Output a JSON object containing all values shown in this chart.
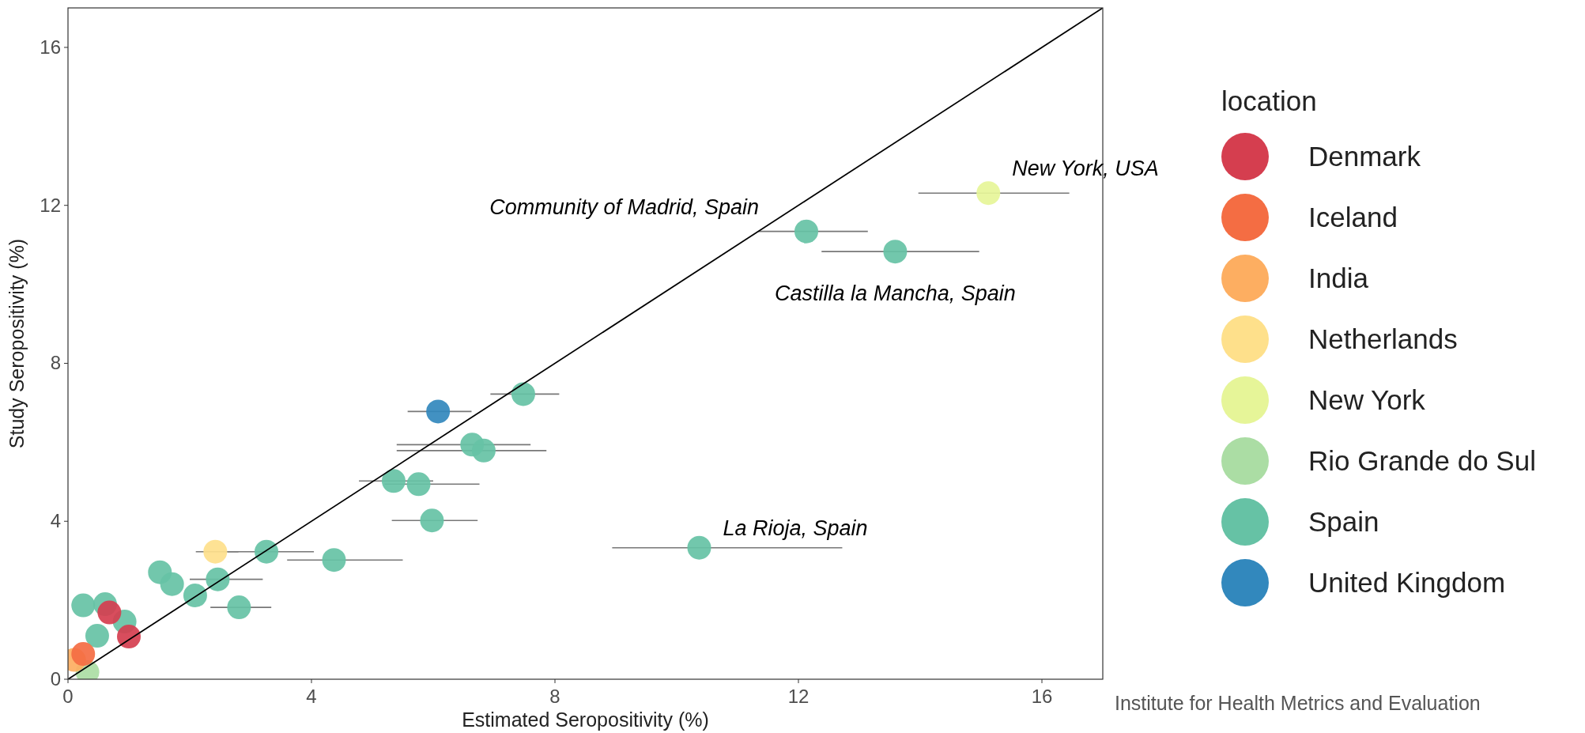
{
  "chart_data": {
    "type": "scatter",
    "xlabel": "Estimated Seropositivity (%)",
    "ylabel": "Study Seropositivity (%)",
    "legend_title": "location",
    "legend": "right",
    "grid": false,
    "marker": "circle",
    "xlim": [
      0,
      17
    ],
    "ylim": [
      0,
      17
    ],
    "xticks": [
      0,
      4,
      8,
      12,
      16
    ],
    "yticks": [
      0,
      4,
      8,
      12,
      16
    ],
    "series": [
      {
        "type": "line",
        "marker": "none",
        "color": "#000000",
        "x": [
          0,
          17
        ],
        "values": [
          0,
          17
        ]
      },
      {
        "name": "Denmark",
        "color": "#d53e4f",
        "x": [
          0.68,
          1.0
        ],
        "values": [
          1.69,
          1.08
        ],
        "xerrors": [
          null,
          null
        ]
      },
      {
        "name": "Iceland",
        "color": "#f46d43",
        "x": [
          0.25
        ],
        "values": [
          0.64
        ],
        "xerrors": [
          null
        ]
      },
      {
        "name": "India",
        "color": "#fdae61",
        "x": [
          0.1
        ],
        "values": [
          0.49
        ],
        "xerrors": [
          null
        ]
      },
      {
        "name": "Netherlands",
        "color": "#fee08b",
        "x": [
          2.42
        ],
        "values": [
          3.23
        ],
        "xerrors": [
          [
            2.1,
            2.8
          ]
        ]
      },
      {
        "name": "New York",
        "color": "#e6f598",
        "x": [
          15.12
        ],
        "values": [
          12.31
        ],
        "xerrors": [
          [
            13.97,
            16.45
          ]
        ]
      },
      {
        "name": "Rio Grande do Sul",
        "color": "#abdda4",
        "x": [
          0.32
        ],
        "values": [
          0.18
        ],
        "xerrors": [
          null
        ]
      },
      {
        "name": "Spain",
        "color": "#66c2a5",
        "x": [
          12.13,
          13.59,
          7.48,
          6.64,
          6.83,
          5.35,
          5.76,
          5.98,
          10.37,
          3.26,
          4.37,
          1.51,
          1.71,
          2.46,
          2.09,
          2.81,
          0.25,
          0.61,
          0.93,
          0.48
        ],
        "values": [
          11.34,
          10.83,
          7.22,
          5.94,
          5.79,
          5.02,
          4.94,
          4.02,
          3.33,
          3.23,
          3.02,
          2.71,
          2.41,
          2.53,
          2.12,
          1.82,
          1.87,
          1.9,
          1.46,
          1.1
        ],
        "xerrors": [
          [
            11.34,
            13.14
          ],
          [
            12.38,
            14.97
          ],
          [
            6.94,
            8.07
          ],
          [
            5.4,
            7.6
          ],
          [
            5.4,
            7.86
          ],
          [
            4.78,
            6.0
          ],
          [
            5.2,
            6.76
          ],
          [
            5.32,
            6.73
          ],
          [
            8.94,
            12.72
          ],
          [
            2.62,
            4.04
          ],
          [
            3.6,
            5.5
          ],
          null,
          null,
          [
            2.0,
            3.2
          ],
          null,
          [
            2.34,
            3.34
          ],
          null,
          null,
          null,
          null
        ]
      },
      {
        "name": "United Kingdom",
        "color": "#3288bd",
        "x": [
          6.08
        ],
        "values": [
          6.78
        ],
        "xerrors": [
          [
            5.58,
            6.63
          ]
        ]
      }
    ],
    "annotations": [
      {
        "text": "Community of Madrid, Spain",
        "x": 12.13,
        "y": 11.34
      },
      {
        "text": "Castilla la Mancha, Spain",
        "x": 13.59,
        "y": 10.83
      },
      {
        "text": "New York, USA",
        "x": 15.12,
        "y": 12.31
      },
      {
        "text": "La Rioja, Spain",
        "x": 10.37,
        "y": 3.33
      },
      "Institute for Health Metrics and Evaluation"
    ]
  }
}
